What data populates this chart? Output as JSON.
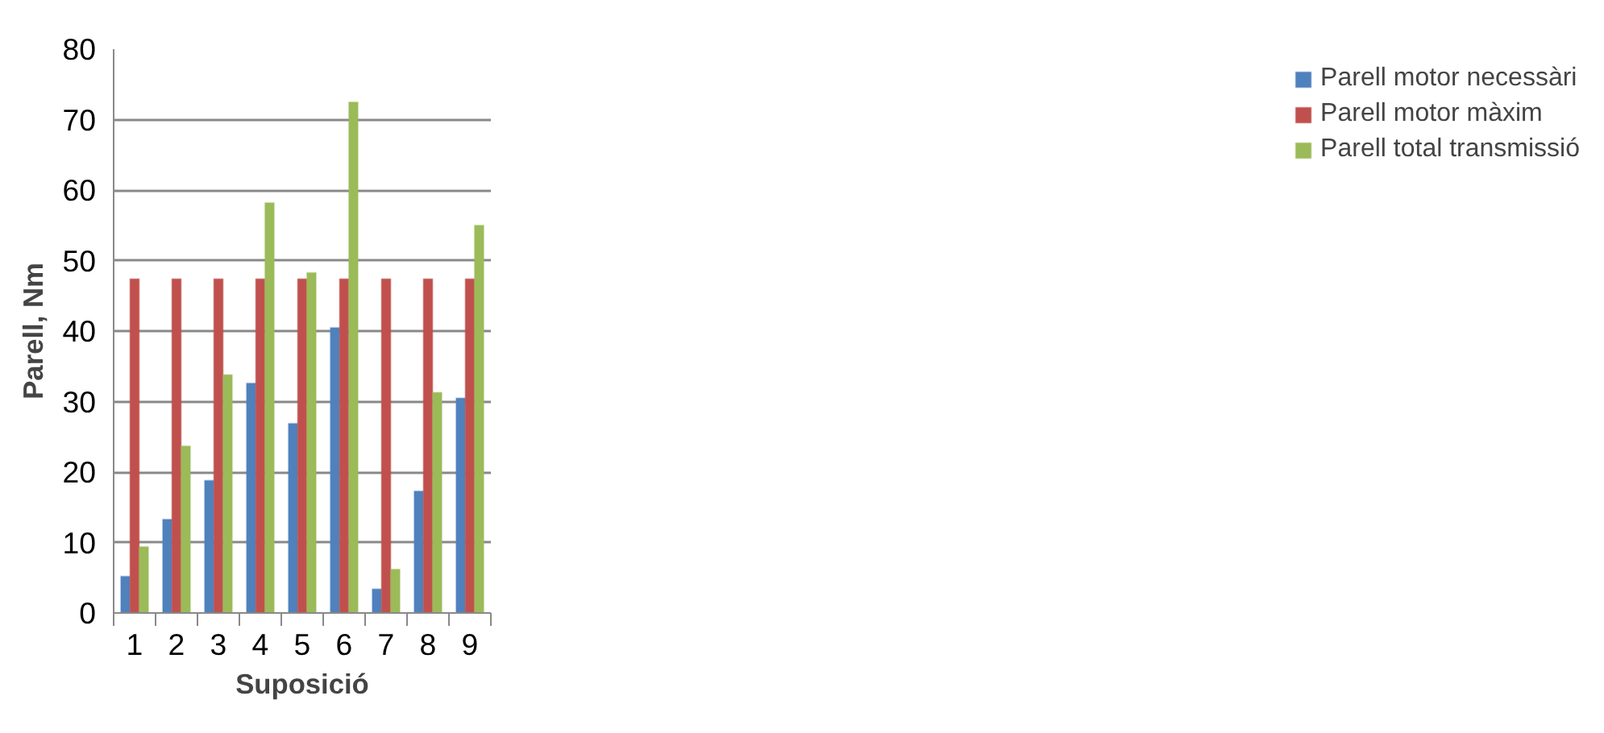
{
  "chart_data": {
    "type": "bar",
    "xlabel": "Suposició",
    "ylabel": "Parell, Nm",
    "categories": [
      "1",
      "2",
      "3",
      "4",
      "5",
      "6",
      "7",
      "8",
      "9"
    ],
    "series": [
      {
        "name": "Parell motor necessàri",
        "color": "#4f81bd",
        "values": [
          5.2,
          13.3,
          18.8,
          32.6,
          26.9,
          40.5,
          3.4,
          17.3,
          30.5
        ]
      },
      {
        "name": "Parell motor màxim",
        "color": "#c0504d",
        "values": [
          47.4,
          47.4,
          47.4,
          47.4,
          47.4,
          47.4,
          47.4,
          47.4,
          47.4
        ]
      },
      {
        "name": "Parell total transmissió",
        "color": "#9bbb59",
        "values": [
          9.4,
          23.7,
          33.8,
          58.2,
          48.3,
          72.5,
          6.2,
          31.3,
          55.0
        ]
      }
    ],
    "ylim": [
      0,
      80
    ],
    "yticks": [
      0,
      10,
      20,
      30,
      40,
      50,
      60,
      70,
      80
    ],
    "grid": "y",
    "legend": "right"
  }
}
